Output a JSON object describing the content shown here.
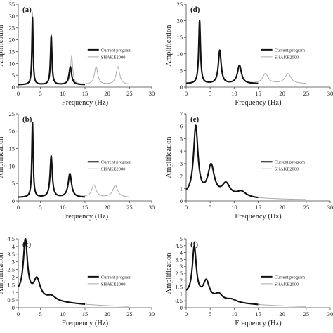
{
  "chart_data": [
    {
      "type": "line",
      "panel_label": "(a)",
      "xlabel": "Frequency (Hz)",
      "ylabel": "Amplification",
      "xlim": [
        0,
        30
      ],
      "ylim": [
        0,
        35
      ],
      "xticks": [
        0,
        5,
        10,
        15,
        20,
        25,
        30
      ],
      "yticks": [
        0,
        5,
        10,
        15,
        20,
        25,
        30,
        35
      ],
      "legend": "right",
      "series": [
        {
          "name": "Current program",
          "style": "thick",
          "x_range": [
            0,
            15
          ],
          "base": 1,
          "peaks": [
            [
              3.2,
              28.5,
              0.16
            ],
            [
              7.4,
              20.5,
              0.2
            ],
            [
              11.7,
              7.5,
              0.35
            ]
          ]
        },
        {
          "name": "SHAKE2000",
          "style": "thin",
          "x_range": [
            0,
            25
          ],
          "base": 1,
          "peaks": [
            [
              3.2,
              30.5,
              0.16
            ],
            [
              7.5,
              21.0,
              0.2
            ],
            [
              12.0,
              12.0,
              0.3
            ],
            [
              17.5,
              7.5,
              0.45
            ],
            [
              22.4,
              7.5,
              0.5
            ]
          ]
        }
      ]
    },
    {
      "type": "line",
      "panel_label": "(d)",
      "xlabel": "Frequency (Hz)",
      "ylabel": "Amplification",
      "xlim": [
        0,
        30
      ],
      "ylim": [
        0,
        25
      ],
      "xticks": [
        0,
        5,
        10,
        15,
        20,
        25,
        30
      ],
      "yticks": [
        0,
        5,
        10,
        15,
        20,
        25
      ],
      "legend": "right",
      "series": [
        {
          "name": "Current program",
          "style": "thick",
          "x_range": [
            0,
            15
          ],
          "base": 1,
          "peaks": [
            [
              2.8,
              19.0,
              0.22
            ],
            [
              7.0,
              10.0,
              0.35
            ],
            [
              11.1,
              5.5,
              0.5
            ]
          ]
        },
        {
          "name": "SHAKE2000",
          "style": "thin",
          "x_range": [
            0,
            25
          ],
          "base": 1,
          "peaks": [
            [
              2.8,
              19.0,
              0.22
            ],
            [
              7.0,
              10.0,
              0.35
            ],
            [
              11.1,
              5.5,
              0.5
            ],
            [
              16.5,
              3.0,
              0.7
            ],
            [
              21.2,
              3.0,
              0.75
            ]
          ]
        }
      ]
    },
    {
      "type": "line",
      "panel_label": "(b)",
      "xlabel": "Frequency (Hz)",
      "ylabel": "Amplification",
      "xlim": [
        0,
        30
      ],
      "ylim": [
        0,
        25
      ],
      "xticks": [
        0,
        5,
        10,
        15,
        20,
        25,
        30
      ],
      "yticks": [
        0,
        5,
        10,
        15,
        20,
        25
      ],
      "legend": "right",
      "series": [
        {
          "name": "Current program",
          "style": "thick",
          "x_range": [
            0,
            15
          ],
          "base": 1,
          "peaks": [
            [
              3.2,
              21.5,
              0.18
            ],
            [
              7.4,
              11.8,
              0.3
            ],
            [
              11.6,
              6.8,
              0.45
            ]
          ]
        },
        {
          "name": "SHAKE2000",
          "style": "thin",
          "x_range": [
            0,
            25
          ],
          "base": 1,
          "peaks": [
            [
              3.2,
              21.5,
              0.18
            ],
            [
              7.4,
              11.8,
              0.3
            ],
            [
              11.6,
              6.8,
              0.45
            ],
            [
              17.0,
              3.5,
              0.6
            ],
            [
              21.8,
              3.4,
              0.65
            ]
          ]
        }
      ]
    },
    {
      "type": "line",
      "panel_label": "(e)",
      "xlabel": "Frequency (Hz)",
      "ylabel": "Amplification",
      "xlim": [
        0,
        30
      ],
      "ylim": [
        0,
        7
      ],
      "xticks": [
        0,
        5,
        10,
        15,
        20,
        25,
        30
      ],
      "yticks": [
        0,
        1,
        2,
        3,
        4,
        5,
        6,
        7
      ],
      "legend": "right",
      "series": [
        {
          "name": "Current program",
          "style": "thick",
          "x_range": [
            0,
            15
          ],
          "base": 0.45,
          "decay": 0.06,
          "peaks": [
            [
              2.0,
              5.5,
              0.55
            ],
            [
              5.2,
              2.4,
              0.8
            ],
            [
              8.3,
              1.0,
              1.0
            ],
            [
              11.5,
              0.45,
              1.2
            ]
          ]
        },
        {
          "name": "SHAKE2000",
          "style": "thin",
          "x_range": [
            0,
            25
          ],
          "base": 0.45,
          "decay": 0.06,
          "peaks": [
            [
              2.0,
              5.5,
              0.55
            ],
            [
              5.2,
              2.4,
              0.8
            ],
            [
              8.3,
              1.0,
              1.0
            ],
            [
              11.5,
              0.45,
              1.2
            ]
          ]
        }
      ]
    },
    {
      "type": "line",
      "panel_label": "(c)",
      "xlabel": "Frequency (Hz)",
      "ylabel": "Amplification",
      "xlim": [
        0,
        30
      ],
      "ylim": [
        0,
        4.5
      ],
      "xticks": [
        0,
        5,
        10,
        15,
        20,
        25,
        30
      ],
      "yticks": [
        0,
        0.5,
        1,
        1.5,
        2,
        2.5,
        3,
        3.5,
        4,
        4.5
      ],
      "legend": "right",
      "series": [
        {
          "name": "Current program",
          "style": "thick",
          "x_range": [
            0,
            15
          ],
          "base": 0.95,
          "decay": 0.1,
          "peaks": [
            [
              1.6,
              3.6,
              0.55
            ],
            [
              4.2,
              1.2,
              0.85
            ],
            [
              7.5,
              0.28,
              1.1
            ]
          ]
        },
        {
          "name": "SHAKE2000",
          "style": "thin",
          "x_range": [
            0,
            25
          ],
          "base": 0.95,
          "decay": 0.1,
          "peaks": [
            [
              1.6,
              3.6,
              0.55
            ],
            [
              4.2,
              1.2,
              0.85
            ],
            [
              7.5,
              0.28,
              1.1
            ]
          ]
        }
      ]
    },
    {
      "type": "line",
      "panel_label": "(f)",
      "xlabel": "Frequency (Hz)",
      "ylabel": "Amplification",
      "xlim": [
        0,
        30
      ],
      "ylim": [
        0,
        5
      ],
      "xticks": [
        0,
        5,
        10,
        15,
        20,
        25,
        30
      ],
      "yticks": [
        0,
        0.5,
        1,
        1.5,
        2,
        2.5,
        3,
        3.5,
        4,
        4.5,
        5
      ],
      "legend": "right",
      "series": [
        {
          "name": "Current program",
          "style": "thick",
          "x_range": [
            0,
            15
          ],
          "base": 0.95,
          "decay": 0.1,
          "peaks": [
            [
              1.7,
              3.55,
              0.5
            ],
            [
              4.2,
              1.25,
              0.75
            ],
            [
              6.8,
              0.45,
              0.9
            ],
            [
              9.5,
              0.2,
              1.2
            ]
          ]
        },
        {
          "name": "SHAKE2000",
          "style": "thin",
          "x_range": [
            0,
            25
          ],
          "base": 0.95,
          "decay": 0.1,
          "peaks": [
            [
              1.7,
              3.55,
              0.5
            ],
            [
              4.2,
              1.25,
              0.75
            ],
            [
              6.8,
              0.45,
              0.9
            ],
            [
              9.5,
              0.2,
              1.2
            ]
          ]
        }
      ]
    }
  ]
}
